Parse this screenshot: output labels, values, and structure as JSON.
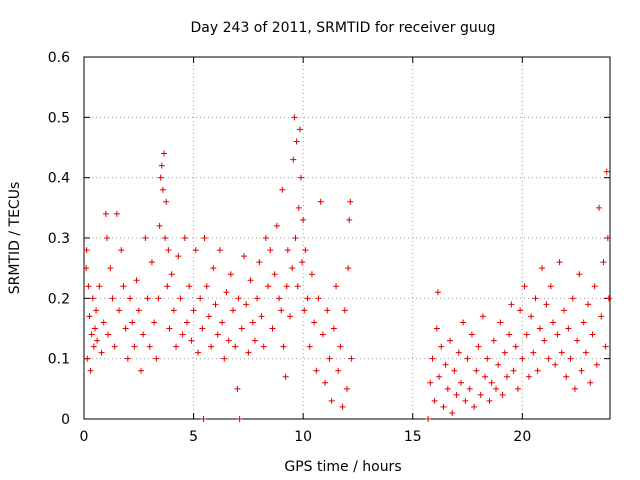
{
  "chart_data": {
    "type": "scatter",
    "title": "Day 243 of 2011, SRMTID for receiver guug",
    "xlabel": "GPS time / hours",
    "ylabel": "SRMTID / TECUs",
    "xlim": [
      0,
      24
    ],
    "ylim": [
      0,
      0.6
    ],
    "xticks": [
      0,
      5,
      10,
      15,
      20
    ],
    "xtick_labels": [
      "0",
      "5",
      "10",
      "15",
      "20"
    ],
    "yticks": [
      0,
      0.1,
      0.2,
      0.3,
      0.4,
      0.5,
      0.6
    ],
    "ytick_labels": [
      "0",
      "0.1",
      "0.2",
      "0.3",
      "0.4",
      "0.5",
      "0.6"
    ],
    "grid": true,
    "marker": "+",
    "color": "#e00000",
    "series": [
      {
        "name": "SRMTID",
        "points": [
          [
            0.1,
            0.25
          ],
          [
            0.12,
            0.28
          ],
          [
            0.15,
            0.1
          ],
          [
            0.2,
            0.22
          ],
          [
            0.25,
            0.17
          ],
          [
            0.3,
            0.08
          ],
          [
            0.35,
            0.14
          ],
          [
            0.4,
            0.2
          ],
          [
            0.45,
            0.12
          ],
          [
            0.5,
            0.15
          ],
          [
            0.55,
            0.18
          ],
          [
            0.6,
            0.13
          ],
          [
            0.7,
            0.22
          ],
          [
            0.8,
            0.11
          ],
          [
            0.9,
            0.16
          ],
          [
            1.0,
            0.34
          ],
          [
            1.05,
            0.3
          ],
          [
            1.1,
            0.14
          ],
          [
            1.2,
            0.25
          ],
          [
            1.3,
            0.2
          ],
          [
            1.4,
            0.12
          ],
          [
            1.5,
            0.34
          ],
          [
            1.6,
            0.18
          ],
          [
            1.7,
            0.28
          ],
          [
            1.8,
            0.22
          ],
          [
            1.9,
            0.15
          ],
          [
            2.0,
            0.1
          ],
          [
            2.1,
            0.2
          ],
          [
            2.2,
            0.16
          ],
          [
            2.3,
            0.12
          ],
          [
            2.4,
            0.23
          ],
          [
            2.5,
            0.18
          ],
          [
            2.6,
            0.08
          ],
          [
            2.7,
            0.14
          ],
          [
            2.8,
            0.3
          ],
          [
            2.9,
            0.2
          ],
          [
            3.0,
            0.12
          ],
          [
            3.1,
            0.26
          ],
          [
            3.2,
            0.16
          ],
          [
            3.3,
            0.1
          ],
          [
            3.4,
            0.2
          ],
          [
            3.45,
            0.32
          ],
          [
            3.5,
            0.4
          ],
          [
            3.55,
            0.42
          ],
          [
            3.6,
            0.38
          ],
          [
            3.65,
            0.44
          ],
          [
            3.7,
            0.3
          ],
          [
            3.75,
            0.36
          ],
          [
            3.8,
            0.22
          ],
          [
            3.85,
            0.28
          ],
          [
            3.9,
            0.15
          ],
          [
            4.0,
            0.24
          ],
          [
            4.1,
            0.18
          ],
          [
            4.2,
            0.12
          ],
          [
            4.3,
            0.27
          ],
          [
            4.4,
            0.2
          ],
          [
            4.5,
            0.14
          ],
          [
            4.6,
            0.3
          ],
          [
            4.7,
            0.16
          ],
          [
            4.8,
            0.22
          ],
          [
            4.9,
            0.13
          ],
          [
            5.0,
            0.18
          ],
          [
            5.1,
            0.28
          ],
          [
            5.2,
            0.11
          ],
          [
            5.3,
            0.2
          ],
          [
            5.4,
            0.15
          ],
          [
            5.45,
            0.0
          ],
          [
            5.5,
            0.3
          ],
          [
            5.6,
            0.22
          ],
          [
            5.7,
            0.17
          ],
          [
            5.8,
            0.12
          ],
          [
            5.9,
            0.25
          ],
          [
            6.0,
            0.19
          ],
          [
            6.1,
            0.14
          ],
          [
            6.2,
            0.28
          ],
          [
            6.3,
            0.16
          ],
          [
            6.4,
            0.1
          ],
          [
            6.5,
            0.21
          ],
          [
            6.6,
            0.13
          ],
          [
            6.7,
            0.24
          ],
          [
            6.8,
            0.18
          ],
          [
            6.9,
            0.12
          ],
          [
            7.0,
            0.05
          ],
          [
            7.05,
            0.2
          ],
          [
            7.1,
            0.0
          ],
          [
            7.2,
            0.15
          ],
          [
            7.3,
            0.27
          ],
          [
            7.4,
            0.19
          ],
          [
            7.5,
            0.11
          ],
          [
            7.6,
            0.23
          ],
          [
            7.7,
            0.16
          ],
          [
            7.8,
            0.13
          ],
          [
            7.9,
            0.2
          ],
          [
            8.0,
            0.26
          ],
          [
            8.1,
            0.17
          ],
          [
            8.2,
            0.12
          ],
          [
            8.3,
            0.3
          ],
          [
            8.4,
            0.22
          ],
          [
            8.5,
            0.28
          ],
          [
            8.6,
            0.15
          ],
          [
            8.7,
            0.24
          ],
          [
            8.8,
            0.32
          ],
          [
            8.9,
            0.2
          ],
          [
            9.0,
            0.18
          ],
          [
            9.05,
            0.38
          ],
          [
            9.1,
            0.12
          ],
          [
            9.2,
            0.07
          ],
          [
            9.25,
            0.22
          ],
          [
            9.3,
            0.28
          ],
          [
            9.4,
            0.17
          ],
          [
            9.5,
            0.25
          ],
          [
            9.55,
            0.43
          ],
          [
            9.6,
            0.5
          ],
          [
            9.65,
            0.3
          ],
          [
            9.7,
            0.46
          ],
          [
            9.75,
            0.22
          ],
          [
            9.8,
            0.35
          ],
          [
            9.85,
            0.48
          ],
          [
            9.9,
            0.4
          ],
          [
            9.95,
            0.26
          ],
          [
            10.0,
            0.33
          ],
          [
            10.05,
            0.18
          ],
          [
            10.1,
            0.28
          ],
          [
            10.2,
            0.2
          ],
          [
            10.3,
            0.12
          ],
          [
            10.4,
            0.24
          ],
          [
            10.5,
            0.16
          ],
          [
            10.6,
            0.08
          ],
          [
            10.7,
            0.2
          ],
          [
            10.8,
            0.36
          ],
          [
            10.9,
            0.14
          ],
          [
            11.0,
            0.06
          ],
          [
            11.1,
            0.18
          ],
          [
            11.2,
            0.1
          ],
          [
            11.3,
            0.03
          ],
          [
            11.4,
            0.15
          ],
          [
            11.5,
            0.22
          ],
          [
            11.6,
            0.08
          ],
          [
            11.7,
            0.12
          ],
          [
            11.8,
            0.02
          ],
          [
            11.9,
            0.18
          ],
          [
            12.0,
            0.05
          ],
          [
            12.05,
            0.25
          ],
          [
            12.1,
            0.33
          ],
          [
            12.15,
            0.36
          ],
          [
            12.2,
            0.1
          ],
          [
            15.7,
            0.0
          ],
          [
            15.8,
            0.06
          ],
          [
            15.9,
            0.1
          ],
          [
            16.0,
            0.03
          ],
          [
            16.1,
            0.15
          ],
          [
            16.15,
            0.21
          ],
          [
            16.2,
            0.07
          ],
          [
            16.3,
            0.12
          ],
          [
            16.4,
            0.02
          ],
          [
            16.5,
            0.09
          ],
          [
            16.6,
            0.05
          ],
          [
            16.7,
            0.13
          ],
          [
            16.8,
            0.01
          ],
          [
            16.9,
            0.08
          ],
          [
            17.0,
            0.04
          ],
          [
            17.1,
            0.11
          ],
          [
            17.2,
            0.06
          ],
          [
            17.3,
            0.16
          ],
          [
            17.4,
            0.03
          ],
          [
            17.5,
            0.1
          ],
          [
            17.6,
            0.05
          ],
          [
            17.7,
            0.14
          ],
          [
            17.8,
            0.02
          ],
          [
            17.9,
            0.08
          ],
          [
            18.0,
            0.12
          ],
          [
            18.1,
            0.04
          ],
          [
            18.2,
            0.17
          ],
          [
            18.3,
            0.07
          ],
          [
            18.4,
            0.1
          ],
          [
            18.5,
            0.03
          ],
          [
            18.6,
            0.06
          ],
          [
            18.7,
            0.13
          ],
          [
            18.8,
            0.05
          ],
          [
            18.9,
            0.09
          ],
          [
            19.0,
            0.16
          ],
          [
            19.1,
            0.04
          ],
          [
            19.2,
            0.11
          ],
          [
            19.3,
            0.07
          ],
          [
            19.4,
            0.14
          ],
          [
            19.5,
            0.19
          ],
          [
            19.6,
            0.08
          ],
          [
            19.7,
            0.12
          ],
          [
            19.8,
            0.05
          ],
          [
            19.9,
            0.18
          ],
          [
            20.0,
            0.1
          ],
          [
            20.1,
            0.22
          ],
          [
            20.2,
            0.14
          ],
          [
            20.3,
            0.07
          ],
          [
            20.4,
            0.17
          ],
          [
            20.5,
            0.11
          ],
          [
            20.6,
            0.2
          ],
          [
            20.7,
            0.08
          ],
          [
            20.8,
            0.15
          ],
          [
            20.9,
            0.25
          ],
          [
            21.0,
            0.13
          ],
          [
            21.1,
            0.19
          ],
          [
            21.2,
            0.1
          ],
          [
            21.3,
            0.22
          ],
          [
            21.4,
            0.16
          ],
          [
            21.5,
            0.09
          ],
          [
            21.6,
            0.14
          ],
          [
            21.7,
            0.26
          ],
          [
            21.8,
            0.11
          ],
          [
            21.9,
            0.18
          ],
          [
            22.0,
            0.07
          ],
          [
            22.1,
            0.15
          ],
          [
            22.2,
            0.1
          ],
          [
            22.3,
            0.2
          ],
          [
            22.4,
            0.05
          ],
          [
            22.5,
            0.13
          ],
          [
            22.6,
            0.24
          ],
          [
            22.7,
            0.08
          ],
          [
            22.8,
            0.16
          ],
          [
            22.9,
            0.11
          ],
          [
            23.0,
            0.19
          ],
          [
            23.1,
            0.06
          ],
          [
            23.2,
            0.14
          ],
          [
            23.3,
            0.22
          ],
          [
            23.4,
            0.09
          ],
          [
            23.5,
            0.35
          ],
          [
            23.6,
            0.17
          ],
          [
            23.7,
            0.26
          ],
          [
            23.8,
            0.12
          ],
          [
            23.85,
            0.41
          ],
          [
            23.9,
            0.3
          ],
          [
            23.95,
            0.2
          ]
        ]
      }
    ]
  }
}
